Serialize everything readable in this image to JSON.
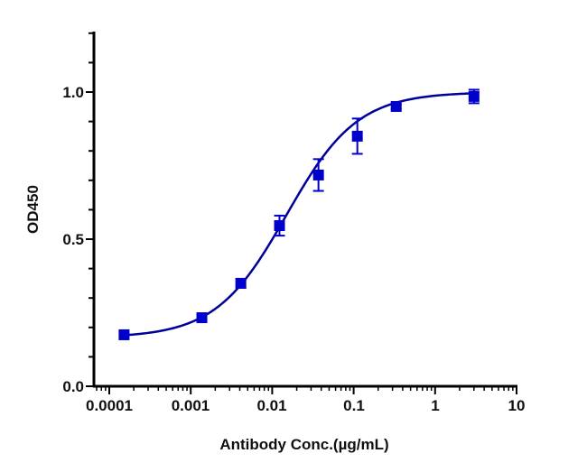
{
  "chart_data": {
    "type": "scatter",
    "title": "",
    "xlabel": "Antibody Conc.(µg/mL)",
    "ylabel": "OD450",
    "xscale": "log",
    "xlim": [
      0.0001,
      10
    ],
    "ylim": [
      0,
      1.2
    ],
    "x_ticks": [
      "0.0001",
      "0.001",
      "0.01",
      "0.1",
      "1",
      "10"
    ],
    "y_ticks": [
      "0.0",
      "0.5",
      "1.0"
    ],
    "grid": false,
    "legend": null,
    "fit": "4-parameter logistic (sigmoidal) curve",
    "series": [
      {
        "name": "OD450",
        "marker": "square",
        "color": "#0000CC",
        "line_color": "#000099",
        "x": [
          0.000152,
          0.00137,
          0.00412,
          0.0123,
          0.037,
          0.111,
          0.333,
          3.0
        ],
        "y": [
          0.175,
          0.233,
          0.35,
          0.546,
          0.718,
          0.85,
          0.951,
          0.985
        ],
        "error": [
          0.005,
          0.008,
          0.015,
          0.034,
          0.054,
          0.06,
          0.008,
          0.023
        ]
      }
    ]
  },
  "labels": {
    "xlabel": "Antibody Conc.(µg/mL)",
    "ylabel": "OD450",
    "xticks": [
      "0.0001",
      "0.001",
      "0.01",
      "0.1",
      "1",
      "10"
    ],
    "yticks": [
      "0.0",
      "0.5",
      "1.0"
    ]
  }
}
